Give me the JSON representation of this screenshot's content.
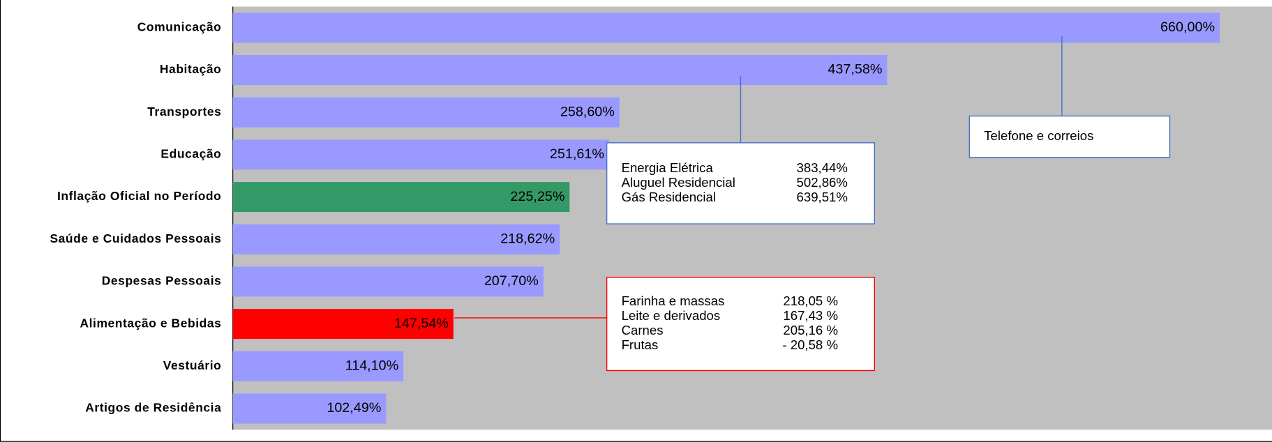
{
  "chart_data": {
    "type": "barh",
    "categories": [
      "Comunicação",
      "Habitação",
      "Transportes",
      "Educação",
      "Inflação Oficial no Período",
      "Saúde e Cuidados Pessoais",
      "Despesas Pessoais",
      "Alimentação e Bebidas",
      "Vestuário",
      "Artigos de Residência"
    ],
    "values": [
      660,
      437.58,
      258.6,
      251.61,
      225.25,
      218.62,
      207.7,
      147.54,
      114.1,
      102.49
    ],
    "value_labels": [
      "660,00%",
      "437,58%",
      "258,60%",
      "251,61%",
      "225,25%",
      "218,62%",
      "207,70%",
      "147,54%",
      "114,10%",
      "102,49%"
    ],
    "colors": [
      "#9999ff",
      "#9999ff",
      "#9999ff",
      "#9999ff",
      "#339966",
      "#9999ff",
      "#9999ff",
      "#ff0000",
      "#9999ff",
      "#9999ff"
    ],
    "xlim": [
      0,
      695
    ],
    "plot_background": "#c0c0c0",
    "annotations": [
      {
        "border_color": "#4472c4",
        "rows": [
          [
            "Telefone e correios"
          ]
        ]
      },
      {
        "border_color": "#4472c4",
        "rows": [
          [
            "Energia Elétrica",
            "383,44%"
          ],
          [
            "Aluguel Residencial",
            "502,86%"
          ],
          [
            "Gás Residencial",
            "639,51%"
          ]
        ]
      },
      {
        "border_color": "#ff0000",
        "rows": [
          [
            "Farinha e massas",
            "218,05 %"
          ],
          [
            "Leite e derivados",
            "167,43 %"
          ],
          [
            "Carnes",
            "205,16 %"
          ],
          [
            "Frutas",
            "- 20,58 %"
          ]
        ]
      }
    ]
  }
}
